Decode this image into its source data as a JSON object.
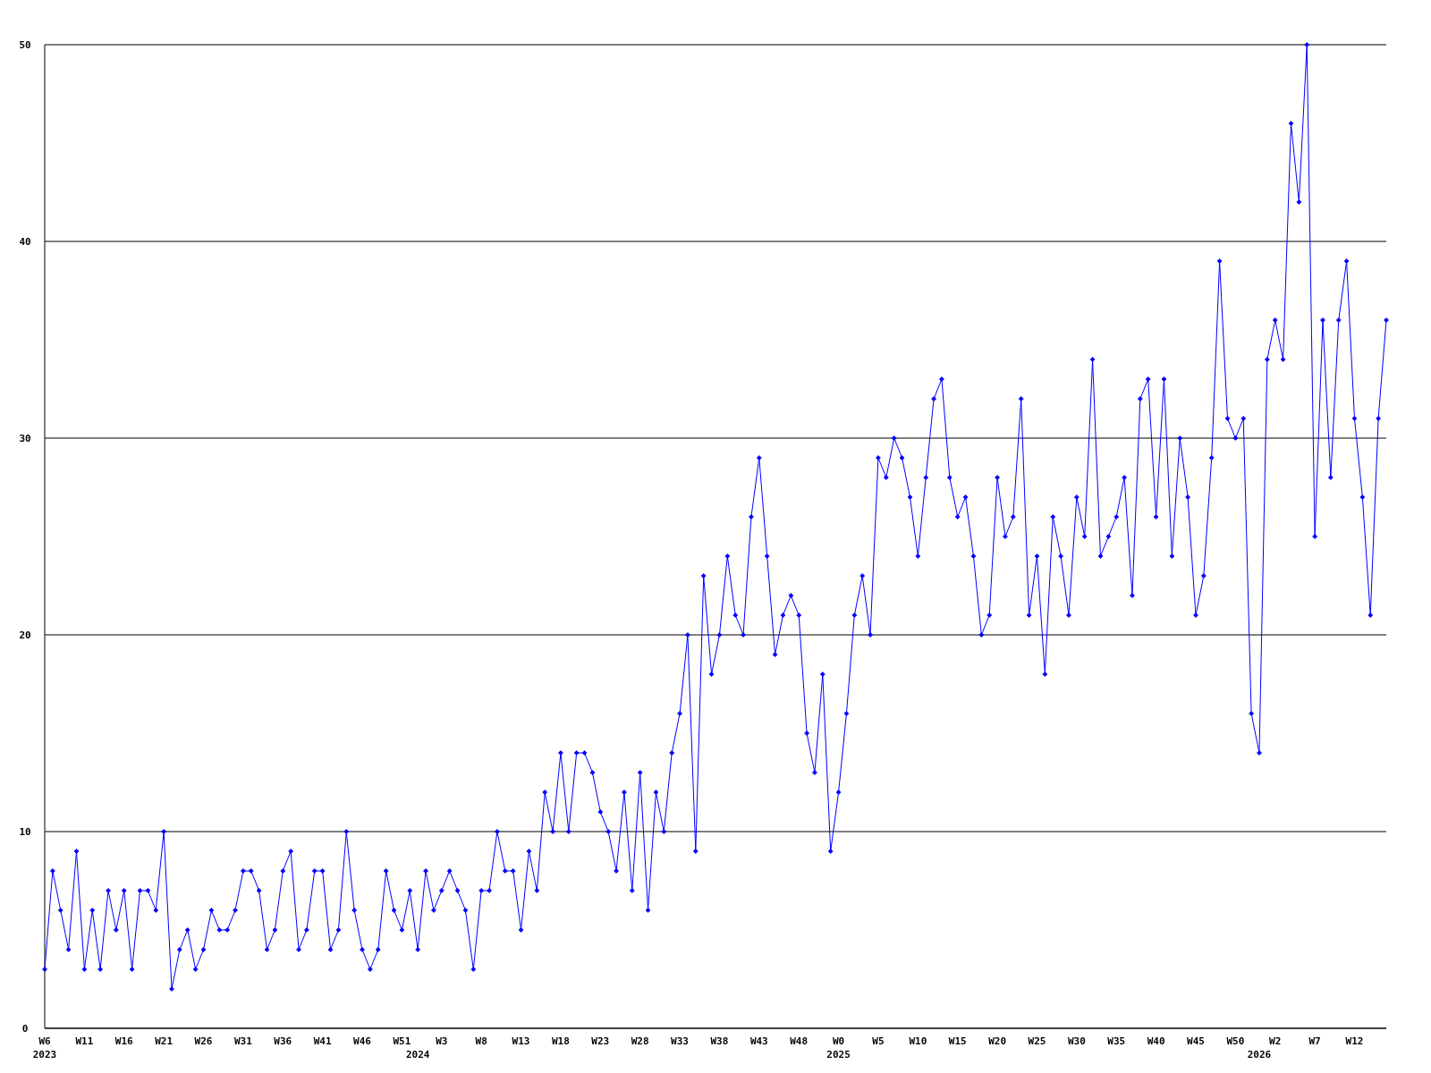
{
  "chart_data": {
    "type": "line",
    "categories": [
      "W6\n2023",
      null,
      null,
      null,
      null,
      "W11",
      null,
      null,
      null,
      null,
      "W16",
      null,
      null,
      null,
      null,
      "W21",
      null,
      null,
      null,
      null,
      "W26",
      null,
      null,
      null,
      null,
      "W31",
      null,
      null,
      null,
      null,
      "W36",
      null,
      null,
      null,
      null,
      "W41",
      null,
      null,
      null,
      null,
      "W46",
      null,
      null,
      null,
      null,
      "W51",
      null,
      "\n2024",
      null,
      null,
      "W3",
      null,
      null,
      null,
      null,
      "W8",
      null,
      null,
      null,
      null,
      "W13",
      null,
      null,
      null,
      null,
      "W18",
      null,
      null,
      null,
      null,
      "W23",
      null,
      null,
      null,
      null,
      "W28",
      null,
      null,
      null,
      null,
      "W33",
      null,
      null,
      null,
      null,
      "W38",
      null,
      null,
      null,
      null,
      "W43",
      null,
      null,
      null,
      null,
      "W48",
      null,
      null,
      null,
      null,
      "W0\n2025",
      null,
      null,
      null,
      null,
      "W5",
      null,
      null,
      null,
      null,
      "W10",
      null,
      null,
      null,
      null,
      "W15",
      null,
      null,
      null,
      null,
      "W20",
      null,
      null,
      null,
      null,
      "W25",
      null,
      null,
      null,
      null,
      "W30",
      null,
      null,
      null,
      null,
      "W35",
      null,
      null,
      null,
      null,
      "W40",
      null,
      null,
      null,
      null,
      "W45",
      null,
      null,
      null,
      null,
      "W50",
      null,
      null,
      "\n2026",
      null,
      "W2",
      null,
      null,
      null,
      null,
      "W7",
      null,
      null,
      null,
      null,
      "W12",
      null,
      null,
      null,
      null
    ],
    "series": [
      {
        "color": "#0000ff",
        "values": [
          3,
          8,
          6,
          4,
          9,
          3,
          6,
          3,
          7,
          5,
          7,
          3,
          7,
          7,
          6,
          10,
          2,
          4,
          5,
          3,
          4,
          6,
          5,
          5,
          6,
          8,
          8,
          7,
          4,
          5,
          8,
          9,
          4,
          5,
          8,
          8,
          4,
          5,
          10,
          6,
          4,
          3,
          4,
          8,
          6,
          5,
          7,
          4,
          8,
          6,
          7,
          8,
          7,
          6,
          3,
          7,
          7,
          10,
          8,
          8,
          5,
          9,
          7,
          12,
          10,
          14,
          10,
          14,
          14,
          13,
          11,
          10,
          8,
          12,
          7,
          13,
          6,
          12,
          10,
          14,
          16,
          20,
          9,
          23,
          18,
          20,
          24,
          21,
          20,
          26,
          29,
          24,
          19,
          21,
          22,
          21,
          15,
          13,
          18,
          9,
          12,
          16,
          21,
          23,
          20,
          29,
          28,
          30,
          29,
          27,
          24,
          28,
          32,
          33,
          28,
          26,
          27,
          24,
          20,
          21,
          28,
          25,
          26,
          32,
          21,
          24,
          18,
          26,
          24,
          21,
          27,
          25,
          34,
          24,
          25,
          26,
          28,
          22,
          32,
          33,
          26,
          33,
          24,
          30,
          27,
          21,
          23,
          29,
          39,
          31,
          30,
          31,
          16,
          14,
          34,
          36,
          34,
          46,
          42,
          50,
          25,
          36,
          28,
          36,
          39,
          31,
          27,
          21,
          31,
          36
        ]
      }
    ],
    "ylim": [
      0,
      50
    ],
    "yticks": [
      0,
      10,
      20,
      30,
      40,
      50
    ],
    "grid": "y",
    "marker": "diamond",
    "line_style": "solid"
  }
}
